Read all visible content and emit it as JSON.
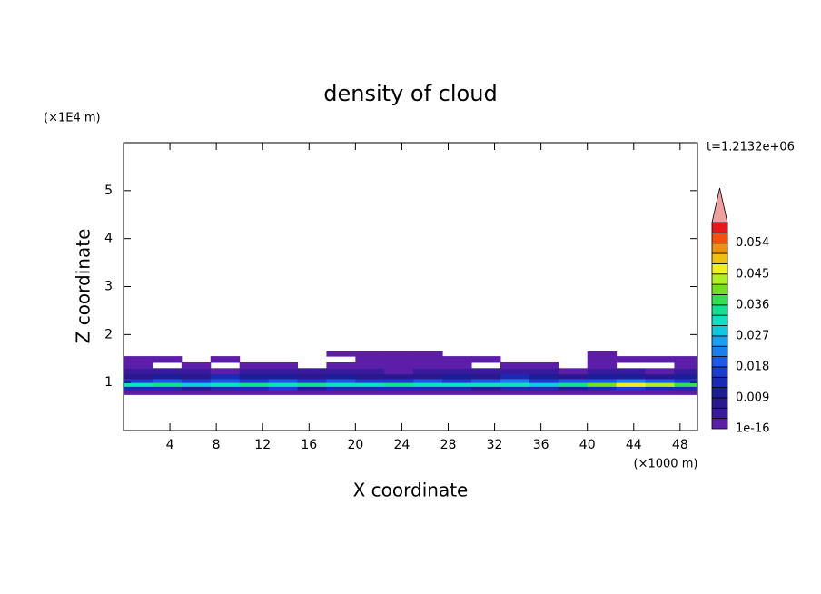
{
  "chart_data": {
    "type": "contourf",
    "title": "density of cloud",
    "x_label": "X coordinate",
    "y_label": "Z coordinate",
    "x_unit": "(×1000 m)",
    "y_unit": "(×1E4 m)",
    "time_label": "t=1.2132e+06",
    "xlim": [
      0,
      49.5
    ],
    "ylim": [
      0,
      6
    ],
    "xticks": [
      4,
      8,
      12,
      16,
      20,
      24,
      28,
      32,
      36,
      40,
      44,
      48
    ],
    "yticks": [
      1,
      2,
      3,
      4,
      5
    ],
    "x_edges": [
      0,
      2.5,
      5,
      7.5,
      10,
      12.5,
      15,
      17.5,
      20,
      22.5,
      25,
      27.5,
      30,
      32.5,
      35,
      37.5,
      40,
      42.5,
      45,
      47.5,
      50
    ],
    "z_edges": [
      0.75,
      0.85,
      0.92,
      1.0,
      1.08,
      1.18,
      1.3,
      1.42,
      1.55,
      1.65
    ],
    "values": [
      [
        0.002,
        0.002,
        0.002,
        0.002,
        0.002,
        0.002,
        0.002,
        0.002,
        0.002,
        0.002,
        0.002,
        0.002,
        0.002,
        0.002,
        0.002,
        0.002,
        0.002,
        0.002,
        0.002,
        0.002
      ],
      [
        0.012,
        0.014,
        0.01,
        0.013,
        0.012,
        0.015,
        0.011,
        0.013,
        0.012,
        0.014,
        0.012,
        0.013,
        0.011,
        0.014,
        0.012,
        0.01,
        0.013,
        0.015,
        0.014,
        0.012
      ],
      [
        0.03,
        0.033,
        0.029,
        0.031,
        0.034,
        0.03,
        0.035,
        0.032,
        0.031,
        0.033,
        0.03,
        0.032,
        0.031,
        0.03,
        0.029,
        0.033,
        0.04,
        0.046,
        0.042,
        0.038
      ],
      [
        0.016,
        0.019,
        0.015,
        0.02,
        0.017,
        0.018,
        0.016,
        0.019,
        0.017,
        0.015,
        0.018,
        0.016,
        0.019,
        0.021,
        0.017,
        0.018,
        0.02,
        0.022,
        0.019,
        0.017
      ],
      [
        0.008,
        0.011,
        0.007,
        0.012,
        0.009,
        0.01,
        0.007,
        0.009,
        0.006,
        0.008,
        0.007,
        0.009,
        0.008,
        0.012,
        0.01,
        0.008,
        0.011,
        0.009,
        0.007,
        0.009
      ],
      [
        0.004,
        0.003,
        0.005,
        0.002,
        0.004,
        0.003,
        0.005,
        0.004,
        0.003,
        0.002,
        0.004,
        0.003,
        0.005,
        0.004,
        0.003,
        0.002,
        0.004,
        0.003,
        0.002,
        0.003
      ],
      [
        0.002,
        0,
        0.002,
        0,
        0.002,
        0.002,
        0,
        0.002,
        0.002,
        0.002,
        0.002,
        0.002,
        0,
        0.002,
        0.002,
        0,
        0.002,
        0,
        0,
        0.002
      ],
      [
        0.002,
        0.002,
        0,
        0.002,
        0,
        0,
        0,
        0,
        0.002,
        0.002,
        0.002,
        0.002,
        0.002,
        0,
        0,
        0,
        0.002,
        0.002,
        0.002,
        0.002
      ],
      [
        0,
        0,
        0,
        0,
        0,
        0,
        0,
        0.002,
        0.002,
        0.002,
        0.002,
        0,
        0,
        0,
        0,
        0,
        0.002,
        0,
        0,
        0
      ]
    ],
    "levels": [
      1e-16,
      0.003,
      0.006,
      0.009,
      0.012,
      0.015,
      0.018,
      0.021,
      0.024,
      0.027,
      0.03,
      0.033,
      0.036,
      0.039,
      0.042,
      0.045,
      0.048,
      0.051,
      0.054,
      0.057,
      0.06
    ],
    "colors": [
      "#5c1ea8",
      "#3a1a9c",
      "#2a1890",
      "#1c1e98",
      "#1a2ab4",
      "#1a3cd0",
      "#1a5ae8",
      "#1a7ef0",
      "#1aa0f0",
      "#10c8e0",
      "#10e0c0",
      "#10e090",
      "#30e050",
      "#70e020",
      "#b0f020",
      "#f0f020",
      "#f0c010",
      "#f09010",
      "#f05010",
      "#e81818"
    ],
    "extend_color": "#f0a0a0",
    "colorbar_ticks": [
      1e-16,
      0.009,
      0.018,
      0.027,
      0.036,
      0.045,
      0.054
    ]
  }
}
